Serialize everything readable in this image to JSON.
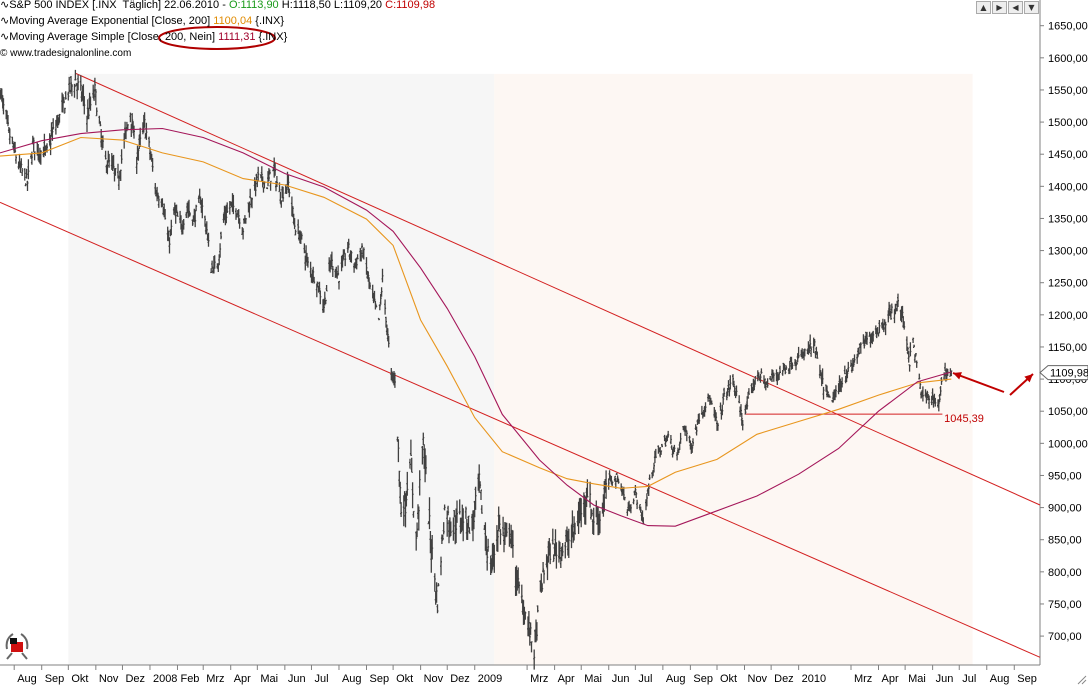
{
  "header": {
    "line1": {
      "symbol": "S&P 500 INDEX [.INX  Täglich] 22.06.2010 - ",
      "open": "O:1113,90",
      "high": " H:1118,50",
      "low": " L:1109,20",
      "close": " C:1109,98"
    },
    "line2": {
      "name": "Moving Average Exponential [Close, 200] ",
      "value": "1100,04",
      "suffix": " {.INX}"
    },
    "line3": {
      "name": "Moving Average Simple [Close, ",
      "params": "200, Nein]",
      "value": " 1111,31",
      "suffix": " {.INX}"
    },
    "source": "© www.tradesignalonline.com"
  },
  "window_buttons": [
    "▲",
    "▶",
    "◀",
    "▼"
  ],
  "colors": {
    "price": "#404040",
    "ema": "#e8961e",
    "sma": "#a4175a",
    "channel": "#d32020",
    "annotation": "#c00000",
    "shade_left": "#f6f6f6",
    "shade_right": "#fdf7f3"
  },
  "chart_data": {
    "type": "line",
    "title": "S&P 500 INDEX [.INX  Täglich] 22.06.2010",
    "y_axis": {
      "range": [
        655,
        1690
      ],
      "position": "right",
      "ticks": [
        "1650,00",
        "1600,00",
        "1550,00",
        "1500,00",
        "1450,00",
        "1400,00",
        "1350,00",
        "1300,00",
        "1250,00",
        "1200,00",
        "1150,00",
        "1100,00",
        "1050,00",
        "1000,00",
        "950,00",
        "900,00",
        "850,00",
        "800,00",
        "750,00",
        "700,00"
      ],
      "tick_values": [
        1650,
        1600,
        1550,
        1500,
        1450,
        1400,
        1350,
        1300,
        1250,
        1200,
        1150,
        1100,
        1050,
        1000,
        950,
        900,
        850,
        800,
        750,
        700
      ]
    },
    "x_axis": {
      "range": [
        "2007-07-16",
        "2010-09-30"
      ],
      "labels": [
        "Aug",
        "Sep",
        "Okt",
        "Nov",
        "Dez",
        "2008",
        "Feb",
        "Mrz",
        "Apr",
        "Mai",
        "Jun",
        "Jul",
        "Aug",
        "Sep",
        "Okt",
        "Nov",
        "Dez",
        "2009",
        "Mrz",
        "Apr",
        "Mai",
        "Jun",
        "Jul",
        "Aug",
        "Sep",
        "Okt",
        "Nov",
        "Dez",
        "2010",
        "Mrz",
        "Apr",
        "Mai",
        "Jun",
        "Jul",
        "Aug",
        "Sep"
      ],
      "label_dates": [
        "2007-08-01",
        "2007-09-01",
        "2007-10-01",
        "2007-11-01",
        "2007-12-01",
        "2008-01-01",
        "2008-02-01",
        "2008-03-01",
        "2008-04-01",
        "2008-05-01",
        "2008-06-01",
        "2008-07-01",
        "2008-08-01",
        "2008-09-01",
        "2008-10-01",
        "2008-11-01",
        "2008-12-01",
        "2009-01-01",
        "2009-03-01",
        "2009-04-01",
        "2009-05-01",
        "2009-06-01",
        "2009-07-01",
        "2009-08-01",
        "2009-09-01",
        "2009-10-01",
        "2009-11-01",
        "2009-12-01",
        "2010-01-01",
        "2010-03-01",
        "2010-04-01",
        "2010-05-01",
        "2010-06-01",
        "2010-07-01",
        "2010-08-01",
        "2010-09-01"
      ]
    },
    "shaded_regions": [
      {
        "from": "2007-10-01",
        "to": "2009-01-23"
      },
      {
        "from": "2009-01-23",
        "to": "2010-07-16"
      }
    ],
    "series": [
      {
        "name": "S&P 500 INDEX",
        "style": "bars",
        "points": [
          [
            "2007-07-16",
            1549
          ],
          [
            "2007-07-26",
            1483
          ],
          [
            "2007-08-06",
            1433
          ],
          [
            "2007-08-16",
            1406
          ],
          [
            "2007-08-22",
            1464
          ],
          [
            "2007-08-29",
            1455
          ],
          [
            "2007-09-07",
            1453
          ],
          [
            "2007-09-13",
            1482
          ],
          [
            "2007-09-24",
            1518
          ],
          [
            "2007-10-01",
            1547
          ],
          [
            "2007-10-09",
            1565
          ],
          [
            "2007-10-17",
            1541
          ],
          [
            "2007-10-22",
            1508
          ],
          [
            "2007-10-31",
            1549
          ],
          [
            "2007-11-07",
            1475
          ],
          [
            "2007-11-12",
            1439
          ],
          [
            "2007-11-19",
            1433
          ],
          [
            "2007-11-26",
            1407
          ],
          [
            "2007-12-03",
            1470
          ],
          [
            "2007-12-10",
            1515
          ],
          [
            "2007-12-17",
            1445
          ],
          [
            "2007-12-26",
            1497
          ],
          [
            "2008-01-02",
            1447
          ],
          [
            "2008-01-08",
            1390
          ],
          [
            "2008-01-15",
            1380
          ],
          [
            "2008-01-22",
            1310
          ],
          [
            "2008-01-29",
            1362
          ],
          [
            "2008-02-05",
            1336
          ],
          [
            "2008-02-12",
            1367
          ],
          [
            "2008-02-19",
            1348
          ],
          [
            "2008-02-27",
            1380
          ],
          [
            "2008-03-05",
            1333
          ],
          [
            "2008-03-10",
            1273
          ],
          [
            "2008-03-17",
            1276
          ],
          [
            "2008-03-24",
            1349
          ],
          [
            "2008-04-01",
            1370
          ],
          [
            "2008-04-08",
            1365
          ],
          [
            "2008-04-15",
            1334
          ],
          [
            "2008-04-22",
            1375
          ],
          [
            "2008-05-02",
            1413
          ],
          [
            "2008-05-12",
            1403
          ],
          [
            "2008-05-19",
            1426
          ],
          [
            "2008-05-27",
            1385
          ],
          [
            "2008-06-05",
            1404
          ],
          [
            "2008-06-12",
            1340
          ],
          [
            "2008-06-20",
            1317
          ],
          [
            "2008-06-27",
            1278
          ],
          [
            "2008-07-07",
            1252
          ],
          [
            "2008-07-15",
            1214
          ],
          [
            "2008-07-23",
            1283
          ],
          [
            "2008-08-01",
            1260
          ],
          [
            "2008-08-11",
            1305
          ],
          [
            "2008-08-18",
            1278
          ],
          [
            "2008-08-28",
            1300
          ],
          [
            "2008-09-05",
            1242
          ],
          [
            "2008-09-15",
            1192
          ],
          [
            "2008-09-19",
            1255
          ],
          [
            "2008-09-29",
            1106
          ],
          [
            "2008-10-03",
            1100
          ],
          [
            "2008-10-10",
            899
          ],
          [
            "2008-10-15",
            908
          ],
          [
            "2008-10-20",
            985
          ],
          [
            "2008-10-27",
            848
          ],
          [
            "2008-11-04",
            1005
          ],
          [
            "2008-11-12",
            852
          ],
          [
            "2008-11-20",
            752
          ],
          [
            "2008-11-28",
            896
          ],
          [
            "2008-12-05",
            876
          ],
          [
            "2008-12-12",
            879
          ],
          [
            "2008-12-19",
            887
          ],
          [
            "2008-12-29",
            869
          ],
          [
            "2009-01-06",
            935
          ],
          [
            "2009-01-14",
            842
          ],
          [
            "2009-01-20",
            805
          ],
          [
            "2009-01-28",
            874
          ],
          [
            "2009-02-05",
            845
          ],
          [
            "2009-02-09",
            870
          ],
          [
            "2009-02-17",
            789
          ],
          [
            "2009-02-27",
            735
          ],
          [
            "2009-03-09",
            676
          ],
          [
            "2009-03-17",
            778
          ],
          [
            "2009-03-26",
            832
          ],
          [
            "2009-04-02",
            834
          ],
          [
            "2009-04-14",
            841
          ],
          [
            "2009-04-24",
            866
          ],
          [
            "2009-05-08",
            929
          ],
          [
            "2009-05-14",
            883
          ],
          [
            "2009-05-22",
            887
          ],
          [
            "2009-06-02",
            944
          ],
          [
            "2009-06-12",
            946
          ],
          [
            "2009-06-23",
            895
          ],
          [
            "2009-07-01",
            923
          ],
          [
            "2009-07-10",
            879
          ],
          [
            "2009-07-17",
            940
          ],
          [
            "2009-07-24",
            979
          ],
          [
            "2009-08-07",
            1010
          ],
          [
            "2009-08-17",
            979
          ],
          [
            "2009-08-25",
            1028
          ],
          [
            "2009-09-02",
            994
          ],
          [
            "2009-09-11",
            1042
          ],
          [
            "2009-09-22",
            1071
          ],
          [
            "2009-10-02",
            1025
          ],
          [
            "2009-10-09",
            1071
          ],
          [
            "2009-10-19",
            1097
          ],
          [
            "2009-10-30",
            1036
          ],
          [
            "2009-11-06",
            1069
          ],
          [
            "2009-11-16",
            1109
          ],
          [
            "2009-11-27",
            1091
          ],
          [
            "2009-12-04",
            1105
          ],
          [
            "2009-12-14",
            1114
          ],
          [
            "2009-12-24",
            1126
          ],
          [
            "2010-01-04",
            1133
          ],
          [
            "2010-01-11",
            1146
          ],
          [
            "2010-01-19",
            1150
          ],
          [
            "2010-01-27",
            1097
          ],
          [
            "2010-02-05",
            1066
          ],
          [
            "2010-02-12",
            1075
          ],
          [
            "2010-02-22",
            1108
          ],
          [
            "2010-03-02",
            1118
          ],
          [
            "2010-03-12",
            1150
          ],
          [
            "2010-03-22",
            1165
          ],
          [
            "2010-04-01",
            1178
          ],
          [
            "2010-04-12",
            1196
          ],
          [
            "2010-04-23",
            1217
          ],
          [
            "2010-04-30",
            1187
          ],
          [
            "2010-05-06",
            1128
          ],
          [
            "2010-05-10",
            1159
          ],
          [
            "2010-05-20",
            1071
          ],
          [
            "2010-05-25",
            1074
          ],
          [
            "2010-06-01",
            1070
          ],
          [
            "2010-06-08",
            1062
          ],
          [
            "2010-06-11",
            1092
          ],
          [
            "2010-06-18",
            1117
          ],
          [
            "2010-06-22",
            1110
          ]
        ]
      },
      {
        "name": "Moving Average Exponential [Close, 200]",
        "style": "line",
        "points": [
          [
            "2007-07-16",
            1447
          ],
          [
            "2007-09-01",
            1452
          ],
          [
            "2007-10-15",
            1476
          ],
          [
            "2007-12-01",
            1472
          ],
          [
            "2008-01-15",
            1452
          ],
          [
            "2008-03-01",
            1438
          ],
          [
            "2008-04-15",
            1412
          ],
          [
            "2008-06-01",
            1402
          ],
          [
            "2008-07-15",
            1383
          ],
          [
            "2008-09-01",
            1349
          ],
          [
            "2008-10-01",
            1308
          ],
          [
            "2008-11-01",
            1192
          ],
          [
            "2008-12-01",
            1120
          ],
          [
            "2009-01-01",
            1040
          ],
          [
            "2009-02-01",
            987
          ],
          [
            "2009-03-15",
            962
          ],
          [
            "2009-04-15",
            945
          ],
          [
            "2009-05-15",
            937
          ],
          [
            "2009-06-15",
            930
          ],
          [
            "2009-07-15",
            933
          ],
          [
            "2009-08-15",
            955
          ],
          [
            "2009-10-01",
            975
          ],
          [
            "2009-11-15",
            1014
          ],
          [
            "2010-01-01",
            1034
          ],
          [
            "2010-02-15",
            1053
          ],
          [
            "2010-04-01",
            1075
          ],
          [
            "2010-05-15",
            1094
          ],
          [
            "2010-06-22",
            1100
          ]
        ]
      },
      {
        "name": "Moving Average Simple [Close, 200, Nein]",
        "style": "line",
        "points": [
          [
            "2007-07-16",
            1452
          ],
          [
            "2007-09-01",
            1471
          ],
          [
            "2007-10-15",
            1482
          ],
          [
            "2007-12-01",
            1488
          ],
          [
            "2008-01-15",
            1490
          ],
          [
            "2008-03-01",
            1476
          ],
          [
            "2008-04-15",
            1452
          ],
          [
            "2008-06-01",
            1420
          ],
          [
            "2008-07-15",
            1399
          ],
          [
            "2008-09-01",
            1363
          ],
          [
            "2008-10-01",
            1330
          ],
          [
            "2008-11-01",
            1273
          ],
          [
            "2008-12-01",
            1210
          ],
          [
            "2009-01-01",
            1135
          ],
          [
            "2009-02-01",
            1045
          ],
          [
            "2009-03-15",
            974
          ],
          [
            "2009-04-15",
            935
          ],
          [
            "2009-05-15",
            904
          ],
          [
            "2009-06-15",
            887
          ],
          [
            "2009-07-15",
            872
          ],
          [
            "2009-08-15",
            871
          ],
          [
            "2009-10-01",
            895
          ],
          [
            "2009-11-15",
            918
          ],
          [
            "2010-01-01",
            952
          ],
          [
            "2010-02-15",
            992
          ],
          [
            "2010-04-01",
            1050
          ],
          [
            "2010-05-15",
            1096
          ],
          [
            "2010-06-22",
            1111
          ]
        ]
      }
    ],
    "trendlines": [
      {
        "from": [
          "2007-10-09",
          1576
        ],
        "to": [
          "2010-09-30",
          904
        ]
      },
      {
        "from": [
          "2007-07-16",
          1375
        ],
        "to": [
          "2010-09-30",
          667
        ]
      },
      {
        "from": [
          "2009-11-01",
          1045.39
        ],
        "to": [
          "2010-06-12",
          1045.39
        ]
      }
    ],
    "annotations": [
      {
        "text": "1045,39",
        "at": [
          "2010-06-14",
          1033
        ]
      }
    ],
    "last_value_label": "1109,98",
    "highlight_ellipse": {
      "around": "Moving Average Simple params",
      "color": "#b00000"
    }
  }
}
